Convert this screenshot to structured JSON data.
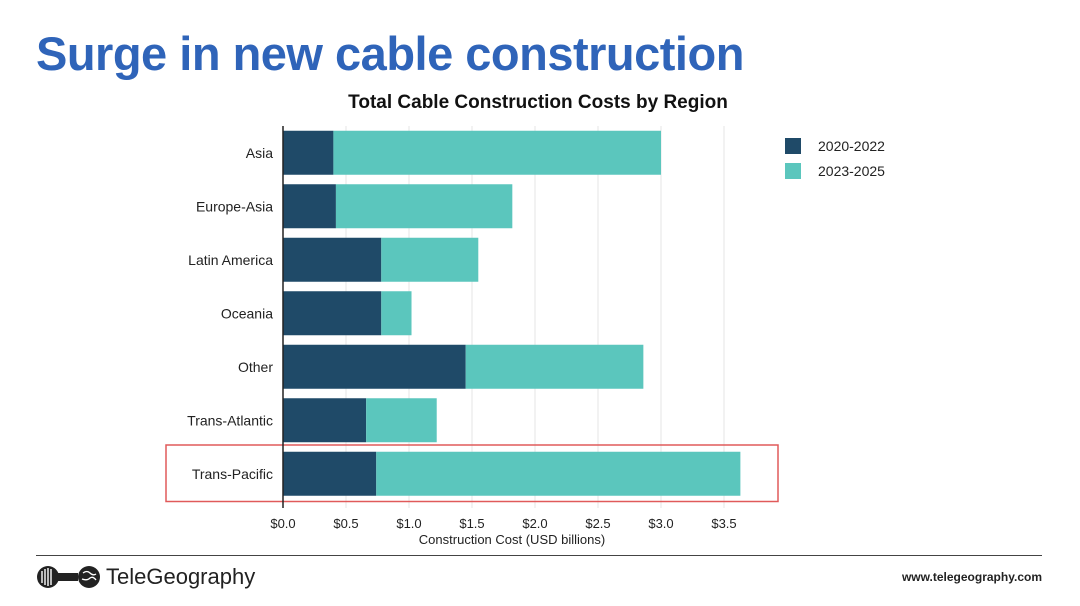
{
  "headline": "Surge in new cable construction",
  "footer": {
    "brand": "TeleGeography",
    "url": "www.telegeography.com",
    "logo_icon": "telegeography-logo-icon"
  },
  "colors": {
    "headline": "#2f64b9",
    "series_2020": "#1f4a68",
    "series_2023": "#5bc6bd",
    "highlight": "#e05a5a"
  },
  "chart_data": {
    "type": "bar",
    "orientation": "horizontal",
    "stacked": true,
    "title": "Total Cable Construction Costs by Region",
    "xlabel": "Construction Cost (USD billions)",
    "ylabel": "",
    "categories": [
      "Asia",
      "Europe-Asia",
      "Latin America",
      "Oceania",
      "Other",
      "Trans-Atlantic",
      "Trans-Pacific"
    ],
    "series": [
      {
        "name": "2020-2022",
        "color": "#1f4a68",
        "values": [
          0.4,
          0.42,
          0.78,
          0.78,
          1.45,
          0.66,
          0.74
        ]
      },
      {
        "name": "2023-2025",
        "color": "#5bc6bd",
        "values": [
          2.6,
          1.4,
          0.77,
          0.24,
          1.41,
          0.56,
          2.89
        ]
      }
    ],
    "xlim": [
      0,
      3.75
    ],
    "xticks": [
      0,
      0.5,
      1,
      1.5,
      2,
      2.5,
      3,
      3.5
    ],
    "xtick_labels": [
      "$0.0",
      "$0.5",
      "$1.0",
      "$1.5",
      "$2.0",
      "$2.5",
      "$3.0",
      "$3.5"
    ],
    "grid": "vertical",
    "legend": "top-right",
    "highlighted_category": "Trans-Pacific"
  }
}
